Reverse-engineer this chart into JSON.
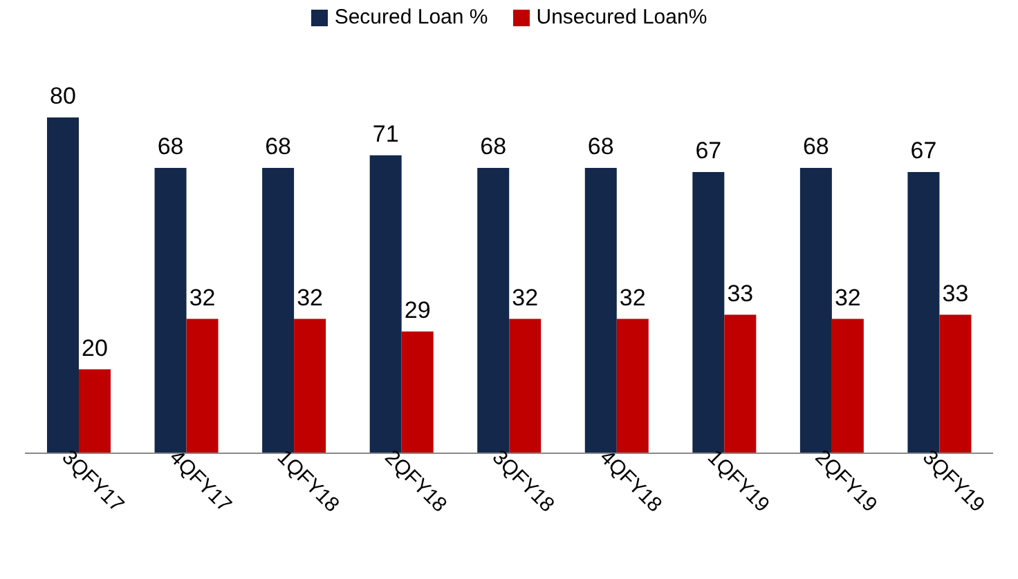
{
  "chart_data": {
    "type": "bar",
    "categories": [
      "3QFY17",
      "4QFY17",
      "1QFY18",
      "2QFY18",
      "3QFY18",
      "4QFY18",
      "1QFY19",
      "2QFY19",
      "3QFY19"
    ],
    "series": [
      {
        "name": "Secured Loan %",
        "color": "#13284b",
        "values": [
          80,
          68,
          68,
          71,
          68,
          68,
          67,
          68,
          67
        ]
      },
      {
        "name": "Unsecured Loan%",
        "color": "#c00000",
        "values": [
          20,
          32,
          32,
          29,
          32,
          32,
          33,
          32,
          33
        ]
      }
    ],
    "data_labels": true,
    "legend": "top",
    "grid": false
  }
}
